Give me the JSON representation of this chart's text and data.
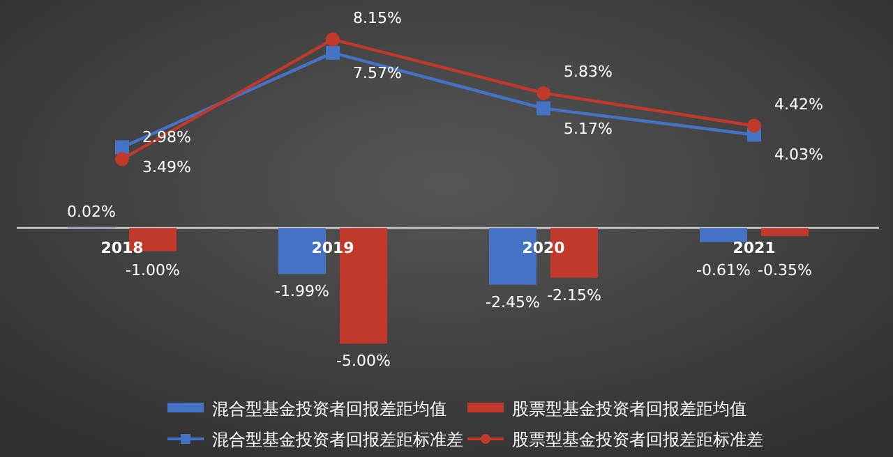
{
  "chart_data": {
    "type": "bar",
    "categories": [
      "2018",
      "2019",
      "2020",
      "2021"
    ],
    "legend": "bottom",
    "series": [
      {
        "name": "混合型基金投资者回报差距均值",
        "color": "#4472c4",
        "values": [
          0.02,
          -1.99,
          -2.45,
          -0.61
        ],
        "value_labels": [
          "0.02%",
          "-1.99%",
          "-2.45%",
          "-0.61%"
        ]
      },
      {
        "name": "股票型基金投资者回报差距均值",
        "color": "#c0392b",
        "values": [
          -1.0,
          -5.0,
          -2.15,
          -0.35
        ],
        "value_labels": [
          "-1.00%",
          "-5.00%",
          "-2.15%",
          "-0.35%"
        ]
      },
      {
        "name": "混合型基金投资者回报差距标准差",
        "type": "line",
        "marker": "square",
        "color": "#4472c4",
        "values": [
          3.49,
          7.57,
          5.17,
          4.03
        ],
        "value_labels": [
          "3.49%",
          "7.57%",
          "5.17%",
          "4.03%"
        ]
      },
      {
        "name": "股票型基金投资者回报差距标准差",
        "type": "line",
        "marker": "circle",
        "color": "#c0392b",
        "values": [
          2.98,
          8.15,
          5.83,
          4.42
        ],
        "value_labels": [
          "2.98%",
          "8.15%",
          "5.83%",
          "4.42%"
        ]
      }
    ]
  }
}
